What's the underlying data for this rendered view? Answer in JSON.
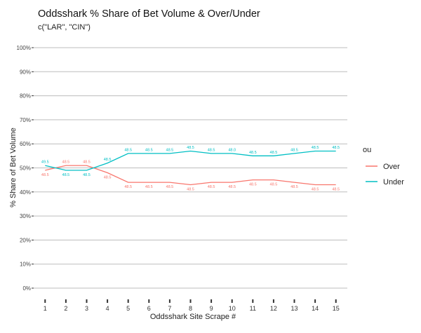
{
  "chart_data": {
    "type": "line",
    "title": "Oddsshark % Share of Bet Volume & Over/Under",
    "subtitle": "c(\"LAR\", \"CIN\")",
    "xlabel": "Oddsshark Site Scrape #",
    "ylabel": "% Share of Bet Volume",
    "x": [
      1,
      2,
      3,
      4,
      5,
      6,
      7,
      8,
      9,
      10,
      11,
      12,
      13,
      14,
      15
    ],
    "y_ticks": [
      "0%",
      "10%",
      "20%",
      "30%",
      "40%",
      "50%",
      "60%",
      "70%",
      "80%",
      "90%",
      "100%"
    ],
    "ylim": [
      0,
      100
    ],
    "grid": true,
    "legend": {
      "title": "ou",
      "position": "right"
    },
    "series": [
      {
        "name": "Over",
        "color": "#F8766D",
        "values": [
          49,
          51,
          51,
          48,
          44,
          44,
          44,
          43,
          44,
          44,
          45,
          45,
          44,
          43,
          43
        ],
        "labels": [
          "48.5",
          "48.5",
          "48.5",
          "48.5",
          "48.5",
          "48.5",
          "48.5",
          "48.5",
          "48.5",
          "48.5",
          "48.5",
          "48.5",
          "48.5",
          "48.5",
          "48.5"
        ]
      },
      {
        "name": "Under",
        "color": "#00BFC4",
        "values": [
          51,
          49,
          49,
          52,
          56,
          56,
          56,
          57,
          56,
          56,
          55,
          55,
          56,
          57,
          57
        ],
        "labels": [
          "49.5",
          "48.5",
          "48.5",
          "48.5",
          "48.5",
          "48.5",
          "48.5",
          "48.5",
          "48.5",
          "48.0",
          "48.5",
          "48.5",
          "48.5",
          "48.5",
          "48.5"
        ]
      }
    ]
  }
}
